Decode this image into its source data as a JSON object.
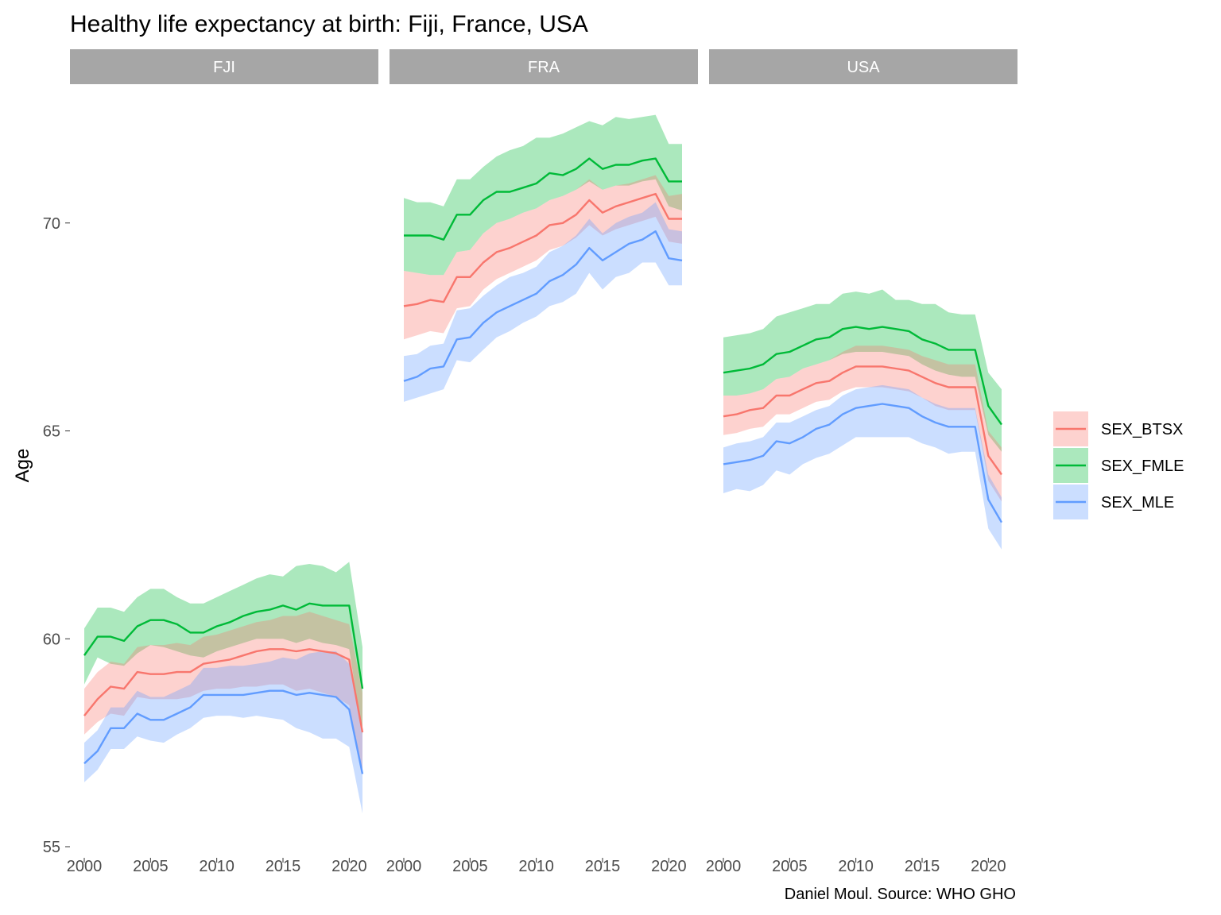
{
  "chart_data": {
    "type": "area",
    "title": "Healthy life expectancy at birth: Fiji, France, USA",
    "ylabel": "Age",
    "xlabel": "",
    "caption": "Daniel Moul. Source: WHO GHO",
    "ylim": [
      55,
      72.8
    ],
    "xlim": [
      2000,
      2021
    ],
    "y_ticks": [
      55,
      60,
      65,
      70
    ],
    "x_ticks": [
      2000,
      2005,
      2010,
      2015,
      2020
    ],
    "grid": false,
    "legend_position": "right",
    "colors": {
      "SEX_BTSX": "#F8766D",
      "SEX_FMLE": "#00BA38",
      "SEX_MLE": "#619CFF"
    },
    "legend": [
      "SEX_BTSX",
      "SEX_FMLE",
      "SEX_MLE"
    ],
    "x": [
      2000,
      2001,
      2002,
      2003,
      2004,
      2005,
      2006,
      2007,
      2008,
      2009,
      2010,
      2011,
      2012,
      2013,
      2014,
      2015,
      2016,
      2017,
      2018,
      2019,
      2020,
      2021
    ],
    "facets": [
      {
        "label": "FJI",
        "series": [
          {
            "name": "SEX_FMLE",
            "values": [
              59.6,
              60.05,
              60.05,
              59.95,
              60.3,
              60.45,
              60.45,
              60.35,
              60.15,
              60.15,
              60.3,
              60.4,
              60.55,
              60.65,
              60.7,
              60.8,
              60.7,
              60.85,
              60.8,
              60.8,
              60.8,
              58.8
            ],
            "lower": [
              58.9,
              59.55,
              59.4,
              59.35,
              59.65,
              59.85,
              59.8,
              59.7,
              59.6,
              59.55,
              59.7,
              59.8,
              59.9,
              60.0,
              60.0,
              60.0,
              59.9,
              60.0,
              59.9,
              59.85,
              59.75,
              57.7
            ],
            "upper": [
              60.25,
              60.75,
              60.75,
              60.65,
              61.0,
              61.2,
              61.2,
              61.0,
              60.85,
              60.85,
              61.0,
              61.15,
              61.3,
              61.45,
              61.55,
              61.5,
              61.75,
              61.8,
              61.75,
              61.6,
              61.85,
              59.8
            ]
          },
          {
            "name": "SEX_BTSX",
            "values": [
              58.15,
              58.55,
              58.85,
              58.8,
              59.2,
              59.15,
              59.15,
              59.2,
              59.2,
              59.4,
              59.45,
              59.5,
              59.6,
              59.7,
              59.75,
              59.75,
              59.7,
              59.75,
              59.7,
              59.65,
              59.5,
              57.75
            ],
            "lower": [
              57.7,
              58.0,
              58.2,
              58.15,
              58.6,
              58.55,
              58.55,
              58.55,
              58.6,
              58.75,
              58.8,
              58.8,
              58.85,
              58.85,
              58.9,
              58.9,
              58.75,
              58.8,
              58.7,
              58.6,
              58.4,
              56.8
            ],
            "upper": [
              58.8,
              59.2,
              59.45,
              59.4,
              59.8,
              59.85,
              59.85,
              59.9,
              59.85,
              60.05,
              60.1,
              60.2,
              60.3,
              60.4,
              60.45,
              60.55,
              60.55,
              60.65,
              60.55,
              60.45,
              60.35,
              58.7
            ]
          },
          {
            "name": "SEX_MLE",
            "values": [
              57.0,
              57.3,
              57.85,
              57.85,
              58.2,
              58.05,
              58.05,
              58.2,
              58.35,
              58.65,
              58.65,
              58.65,
              58.65,
              58.7,
              58.75,
              58.75,
              58.65,
              58.7,
              58.65,
              58.6,
              58.3,
              56.75
            ],
            "lower": [
              56.55,
              56.85,
              57.35,
              57.35,
              57.65,
              57.55,
              57.5,
              57.7,
              57.85,
              58.1,
              58.15,
              58.15,
              58.1,
              58.15,
              58.1,
              58.05,
              57.85,
              57.75,
              57.6,
              57.6,
              57.4,
              55.8
            ],
            "upper": [
              57.5,
              57.8,
              58.35,
              58.35,
              58.75,
              58.6,
              58.6,
              58.75,
              58.9,
              59.3,
              59.3,
              59.35,
              59.35,
              59.4,
              59.45,
              59.55,
              59.5,
              59.65,
              59.7,
              59.7,
              59.4,
              57.8
            ]
          }
        ]
      },
      {
        "label": "FRA",
        "series": [
          {
            "name": "SEX_FMLE",
            "values": [
              69.7,
              69.7,
              69.7,
              69.6,
              70.2,
              70.2,
              70.55,
              70.75,
              70.75,
              70.85,
              70.95,
              71.2,
              71.15,
              71.3,
              71.55,
              71.3,
              71.4,
              71.4,
              71.5,
              71.55,
              71.0,
              71.0
            ],
            "lower": [
              68.85,
              68.8,
              68.75,
              68.75,
              69.3,
              69.35,
              69.75,
              70.0,
              70.1,
              70.25,
              70.35,
              70.55,
              70.65,
              70.8,
              71.0,
              70.8,
              70.9,
              70.9,
              71.0,
              71.05,
              70.4,
              70.3
            ],
            "upper": [
              70.6,
              70.5,
              70.5,
              70.4,
              71.05,
              71.05,
              71.35,
              71.6,
              71.75,
              71.85,
              72.05,
              72.05,
              72.15,
              72.3,
              72.45,
              72.35,
              72.55,
              72.5,
              72.55,
              72.6,
              71.9,
              71.9
            ]
          },
          {
            "name": "SEX_BTSX",
            "values": [
              68.0,
              68.05,
              68.15,
              68.1,
              68.7,
              68.7,
              69.05,
              69.3,
              69.4,
              69.55,
              69.7,
              69.95,
              70.0,
              70.2,
              70.55,
              70.25,
              70.4,
              70.5,
              70.6,
              70.7,
              70.1,
              70.1
            ],
            "lower": [
              67.2,
              67.3,
              67.4,
              67.35,
              67.95,
              68.0,
              68.4,
              68.65,
              68.8,
              68.95,
              69.1,
              69.35,
              69.45,
              69.65,
              69.95,
              69.7,
              69.85,
              69.95,
              70.05,
              70.15,
              69.55,
              69.5
            ],
            "upper": [
              68.85,
              68.8,
              68.75,
              68.75,
              69.3,
              69.35,
              69.75,
              70.0,
              70.1,
              70.25,
              70.35,
              70.55,
              70.65,
              70.8,
              71.05,
              70.8,
              70.9,
              70.95,
              71.05,
              71.15,
              70.65,
              70.7
            ]
          },
          {
            "name": "SEX_MLE",
            "values": [
              66.2,
              66.3,
              66.5,
              66.55,
              67.2,
              67.25,
              67.6,
              67.85,
              68.0,
              68.15,
              68.3,
              68.6,
              68.75,
              69.0,
              69.4,
              69.1,
              69.3,
              69.5,
              69.6,
              69.8,
              69.15,
              69.1
            ],
            "lower": [
              65.7,
              65.8,
              65.9,
              66.0,
              66.7,
              66.65,
              66.95,
              67.25,
              67.4,
              67.6,
              67.75,
              68.0,
              68.1,
              68.3,
              68.8,
              68.4,
              68.7,
              68.8,
              69.05,
              69.05,
              68.5,
              68.5
            ],
            "upper": [
              66.8,
              66.85,
              67.05,
              67.1,
              67.9,
              67.95,
              68.25,
              68.5,
              68.7,
              68.8,
              68.95,
              69.3,
              69.45,
              69.7,
              70.1,
              69.75,
              70.0,
              70.15,
              70.25,
              70.5,
              69.85,
              69.8
            ]
          }
        ]
      },
      {
        "label": "USA",
        "series": [
          {
            "name": "SEX_FMLE",
            "values": [
              66.4,
              66.45,
              66.5,
              66.6,
              66.85,
              66.9,
              67.05,
              67.2,
              67.25,
              67.45,
              67.5,
              67.45,
              67.5,
              67.45,
              67.4,
              67.2,
              67.1,
              66.95,
              66.95,
              66.95,
              65.6,
              65.15
            ],
            "lower": [
              65.85,
              65.85,
              65.9,
              66.0,
              66.25,
              66.3,
              66.5,
              66.6,
              66.7,
              66.85,
              66.9,
              66.9,
              66.9,
              66.85,
              66.8,
              66.6,
              66.45,
              66.35,
              66.3,
              66.3,
              64.9,
              64.5
            ],
            "upper": [
              67.25,
              67.3,
              67.35,
              67.45,
              67.75,
              67.85,
              67.95,
              68.05,
              68.05,
              68.3,
              68.35,
              68.3,
              68.4,
              68.15,
              68.15,
              68.05,
              68.05,
              67.85,
              67.8,
              67.8,
              66.4,
              66.0
            ]
          },
          {
            "name": "SEX_BTSX",
            "values": [
              65.35,
              65.4,
              65.5,
              65.55,
              65.85,
              65.85,
              66.0,
              66.15,
              66.2,
              66.4,
              66.55,
              66.55,
              66.55,
              66.5,
              66.45,
              66.3,
              66.15,
              66.05,
              66.05,
              66.05,
              64.4,
              63.95
            ],
            "lower": [
              64.9,
              64.95,
              65.05,
              65.1,
              65.4,
              65.4,
              65.55,
              65.7,
              65.75,
              65.95,
              66.05,
              66.05,
              66.05,
              66.0,
              65.95,
              65.8,
              65.6,
              65.5,
              65.5,
              65.5,
              63.8,
              63.3
            ],
            "upper": [
              65.85,
              65.85,
              65.9,
              66.0,
              66.25,
              66.3,
              66.5,
              66.6,
              66.7,
              66.9,
              67.05,
              67.05,
              67.05,
              67.0,
              66.95,
              66.8,
              66.7,
              66.6,
              66.6,
              66.6,
              65.0,
              64.6
            ]
          },
          {
            "name": "SEX_MLE",
            "values": [
              64.2,
              64.25,
              64.3,
              64.4,
              64.75,
              64.7,
              64.85,
              65.05,
              65.15,
              65.4,
              65.55,
              65.6,
              65.65,
              65.6,
              65.55,
              65.35,
              65.2,
              65.1,
              65.1,
              65.1,
              63.35,
              62.8
            ],
            "lower": [
              63.5,
              63.6,
              63.55,
              63.7,
              64.05,
              63.95,
              64.2,
              64.35,
              64.45,
              64.65,
              64.85,
              64.85,
              64.85,
              64.85,
              64.85,
              64.7,
              64.6,
              64.45,
              64.5,
              64.5,
              62.65,
              62.15
            ],
            "upper": [
              64.6,
              64.7,
              64.75,
              64.85,
              65.2,
              65.2,
              65.35,
              65.5,
              65.6,
              65.85,
              66.0,
              66.05,
              66.1,
              66.05,
              66.0,
              65.8,
              65.65,
              65.55,
              65.55,
              65.55,
              63.95,
              63.4
            ]
          }
        ]
      }
    ]
  }
}
